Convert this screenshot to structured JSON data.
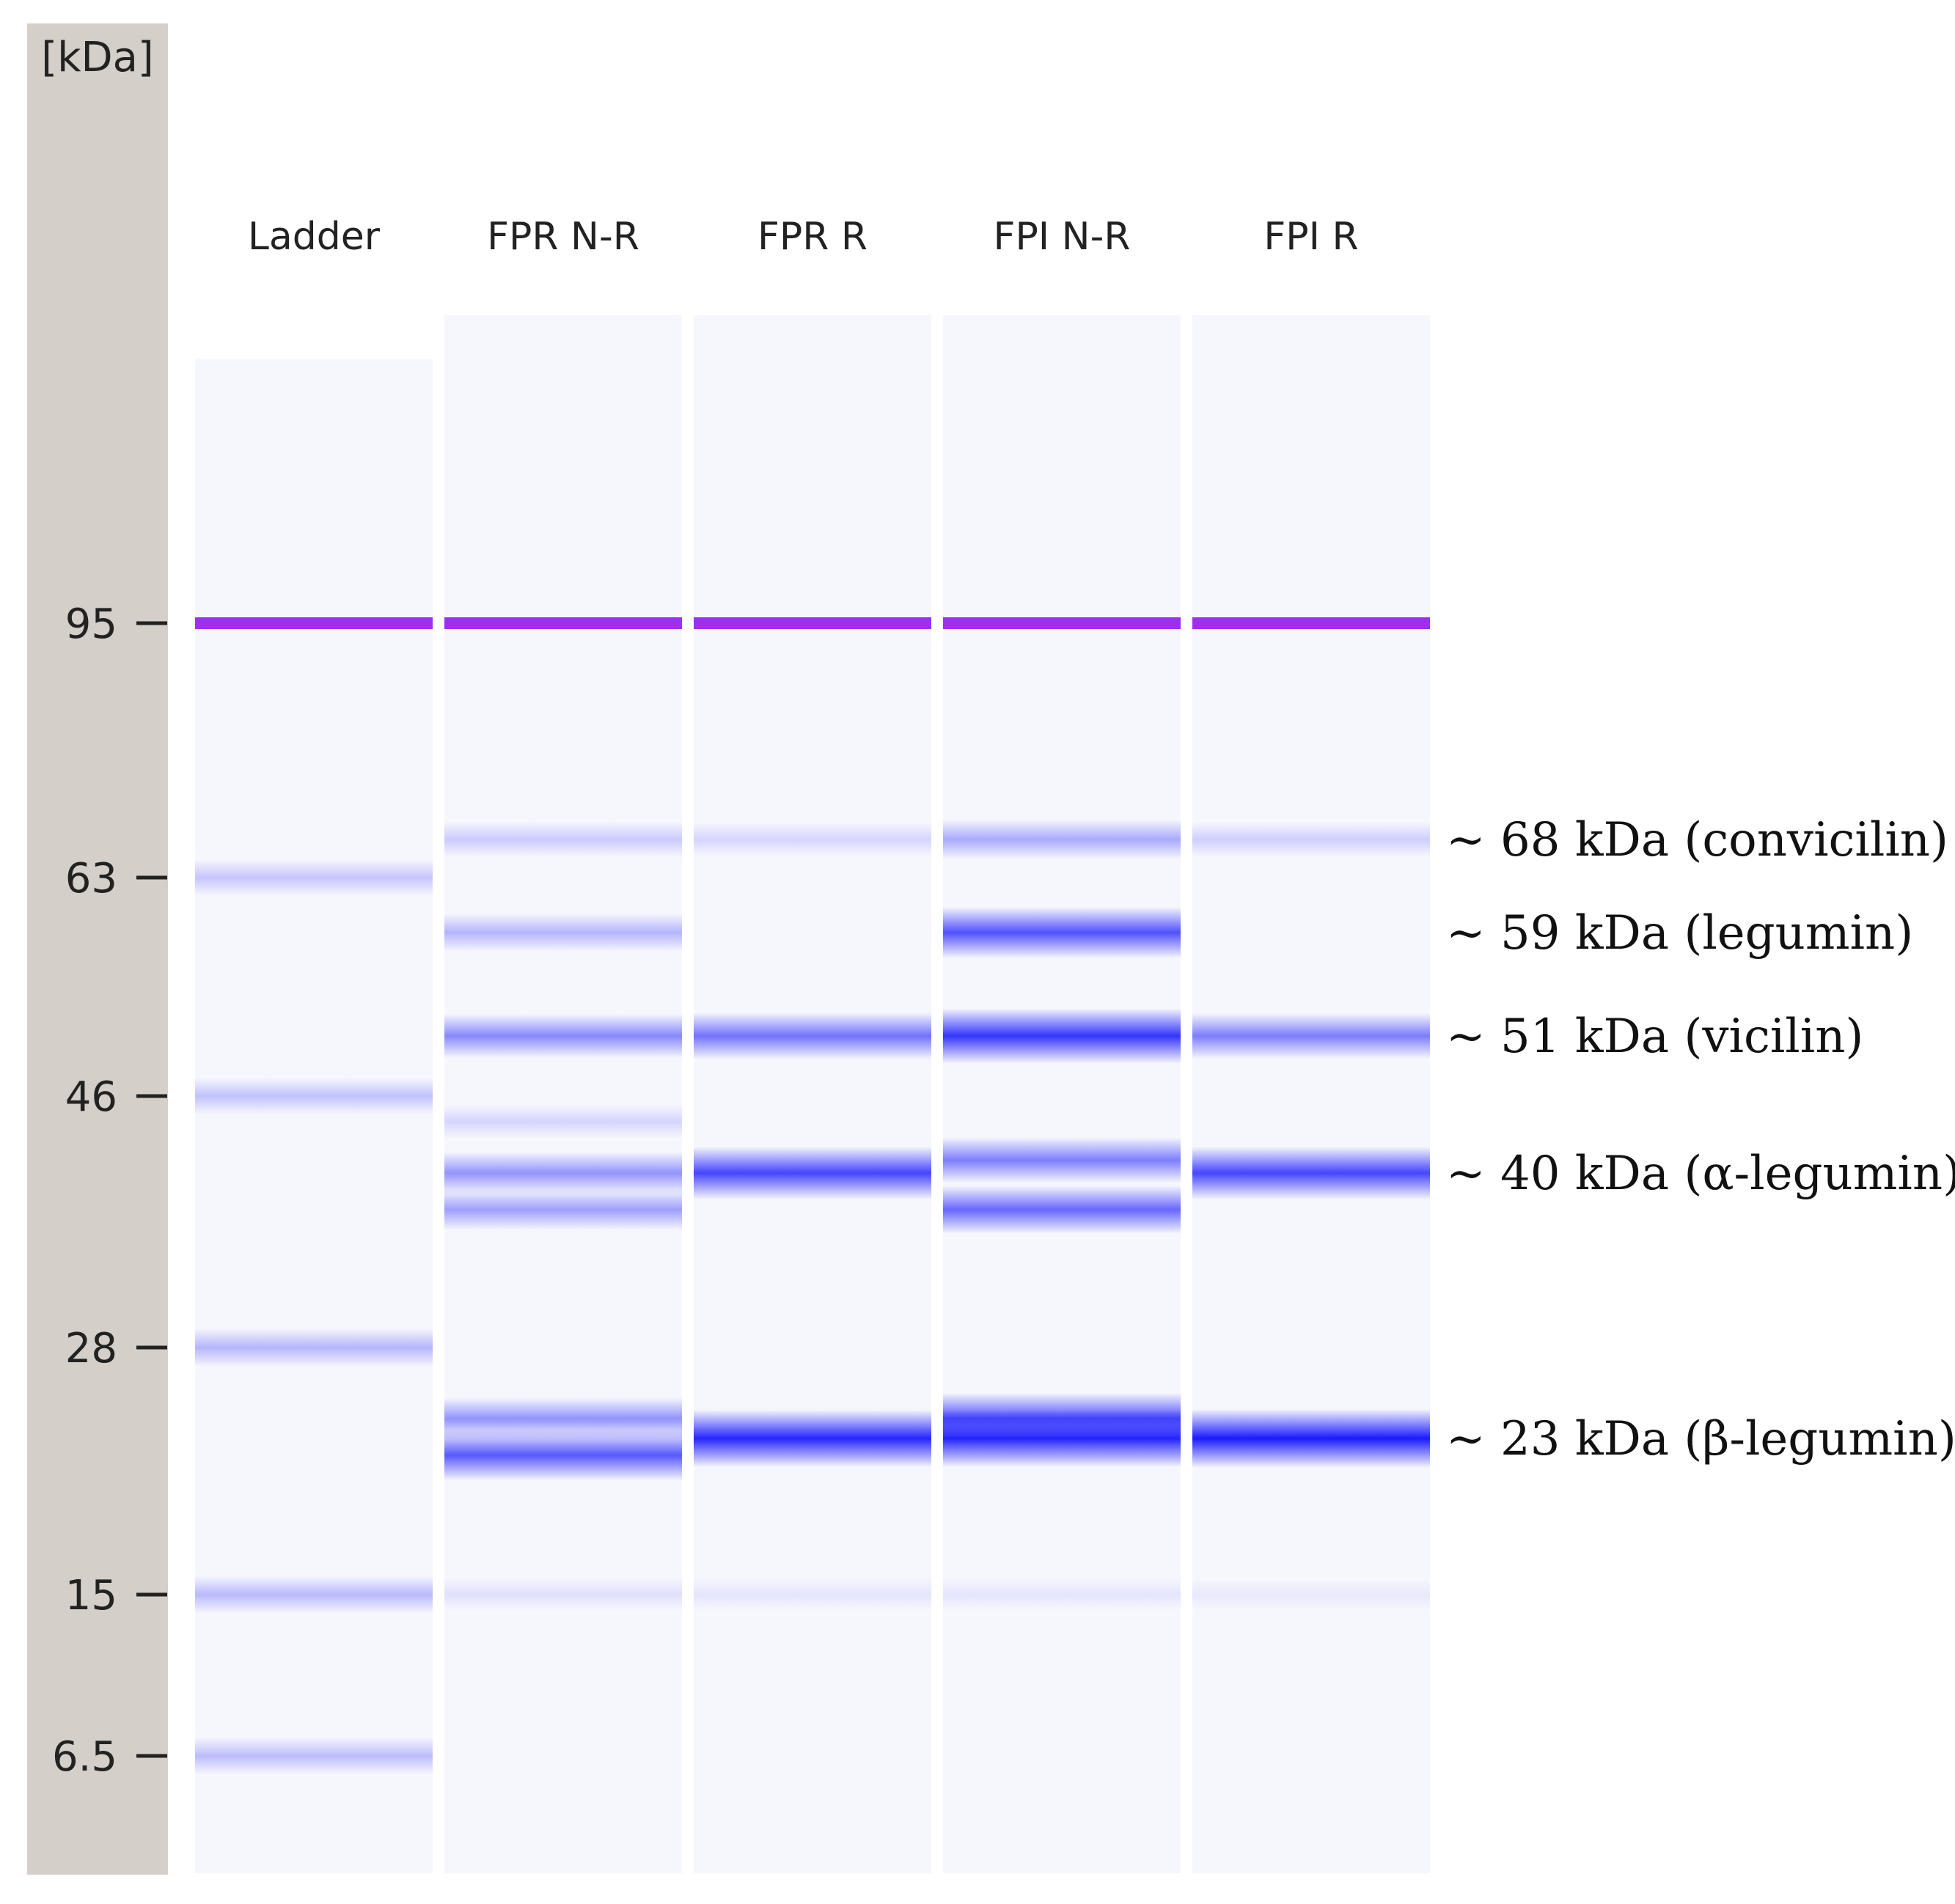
{
  "figure_type": "capillary electrophoresis gel image",
  "axis": {
    "unit_label": "[kDa]",
    "ticks": [
      {
        "value": 95,
        "label": "95"
      },
      {
        "value": 63,
        "label": "63"
      },
      {
        "value": 46,
        "label": "46"
      },
      {
        "value": 28,
        "label": "28"
      },
      {
        "value": 15,
        "label": "15"
      },
      {
        "value": 6.5,
        "label": "6.5"
      }
    ]
  },
  "lanes": [
    {
      "label": "Ladder"
    },
    {
      "label": "FPR N-R"
    },
    {
      "label": "FPR R"
    },
    {
      "label": "FPI N-R"
    },
    {
      "label": "FPI R"
    }
  ],
  "bands": [
    [
      {
        "kda": 95,
        "intensity": 1.0,
        "marker": true
      },
      {
        "kda": 63,
        "intensity": 0.22
      },
      {
        "kda": 46,
        "intensity": 0.24
      },
      {
        "kda": 28,
        "intensity": 0.3
      },
      {
        "kda": 15,
        "intensity": 0.28
      },
      {
        "kda": 6.5,
        "intensity": 0.26
      }
    ],
    [
      {
        "kda": 95,
        "intensity": 1.0,
        "marker": true
      },
      {
        "kda": 68,
        "intensity": 0.2
      },
      {
        "kda": 59,
        "intensity": 0.3
      },
      {
        "kda": 51,
        "intensity": 0.5
      },
      {
        "kda": 44,
        "intensity": 0.15
      },
      {
        "kda": 40,
        "intensity": 0.45
      },
      {
        "kda": 37,
        "intensity": 0.4
      },
      {
        "kda": 24,
        "intensity": 0.45
      },
      {
        "kda": 22,
        "intensity": 0.72
      },
      {
        "kda": 15,
        "intensity": 0.1
      }
    ],
    [
      {
        "kda": 95,
        "intensity": 1.0,
        "marker": true
      },
      {
        "kda": 68,
        "intensity": 0.15
      },
      {
        "kda": 51,
        "intensity": 0.6
      },
      {
        "kda": 40,
        "intensity": 0.8
      },
      {
        "kda": 23,
        "intensity": 0.95
      },
      {
        "kda": 15,
        "intensity": 0.08
      }
    ],
    [
      {
        "kda": 95,
        "intensity": 1.0,
        "marker": true
      },
      {
        "kda": 68,
        "intensity": 0.35
      },
      {
        "kda": 59,
        "intensity": 0.75
      },
      {
        "kda": 51,
        "intensity": 0.88
      },
      {
        "kda": 41,
        "intensity": 0.55
      },
      {
        "kda": 37,
        "intensity": 0.65
      },
      {
        "kda": 24,
        "intensity": 0.75
      },
      {
        "kda": 23,
        "intensity": 0.95
      },
      {
        "kda": 15,
        "intensity": 0.08
      }
    ],
    [
      {
        "kda": 95,
        "intensity": 1.0,
        "marker": true
      },
      {
        "kda": 68,
        "intensity": 0.18
      },
      {
        "kda": 51,
        "intensity": 0.55
      },
      {
        "kda": 40,
        "intensity": 0.8
      },
      {
        "kda": 23,
        "intensity": 1.0
      },
      {
        "kda": 15,
        "intensity": 0.06
      }
    ]
  ],
  "annotations": [
    {
      "text": "~ 68 kDa (convicilin)",
      "kda": 68
    },
    {
      "text": "~ 59 kDa (legumin)",
      "kda": 59
    },
    {
      "text": "~ 51 kDa (vicilin)",
      "kda": 51
    },
    {
      "text": "~ 40 kDa (α-legumin)",
      "kda": 40
    },
    {
      "text": "~ 23 kDa (β-legumin)",
      "kda": 23
    }
  ],
  "colors": {
    "axis_panel": "#d4cfc8",
    "lane_background": "#f6f6fd",
    "band": "#1a1aff",
    "marker_band": "#9b30f0",
    "text": "#222222"
  }
}
